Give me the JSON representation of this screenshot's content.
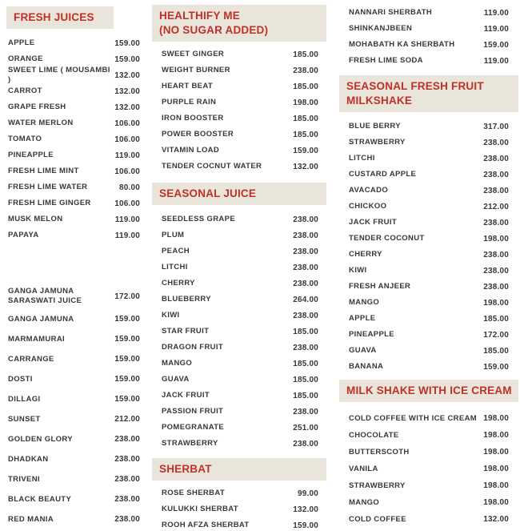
{
  "theme": {
    "header_bg": "#e9e5da",
    "header_text": "#bf3128",
    "item_text": "#383838",
    "page_bg": "#ffffff"
  },
  "columns": [
    {
      "id": "left",
      "sections": [
        {
          "title_lines": [
            "FRESH JUICES"
          ],
          "items": [
            {
              "name": "APPLE",
              "price": "159.00"
            },
            {
              "name": "ORANGE",
              "price": "159.00"
            },
            {
              "name": "SWEET LIME ( MOUSAMBI )",
              "price": "132.00"
            },
            {
              "name": "CARROT",
              "price": "132.00"
            },
            {
              "name": "GRAPE FRESH",
              "price": "132.00"
            },
            {
              "name": "WATER MERLON",
              "price": "106.00"
            },
            {
              "name": "TOMATO",
              "price": "106.00"
            },
            {
              "name": "PINEAPPLE",
              "price": "119.00"
            },
            {
              "name": "FRESH LIME MINT",
              "price": "106.00"
            },
            {
              "name": "FRESH LIME WATER",
              "price": "80.00"
            },
            {
              "name": "FRESH LIME GINGER",
              "price": "106.00"
            },
            {
              "name": "MUSK MELON",
              "price": "119.00"
            },
            {
              "name": "PAPAYA",
              "price": "119.00"
            }
          ]
        },
        {
          "title_lines": [],
          "items": [
            {
              "name": "GANGA JAMUNA\nSARASWATI JUICE",
              "price": "172.00"
            },
            {
              "name": "GANGA JAMUNA",
              "price": "159.00"
            },
            {
              "name": "MARMAMURAI",
              "price": "159.00"
            },
            {
              "name": "CARRANGE",
              "price": "159.00"
            },
            {
              "name": "DOSTI",
              "price": "159.00"
            },
            {
              "name": "DILLAGI",
              "price": "159.00"
            },
            {
              "name": "SUNSET",
              "price": "212.00"
            },
            {
              "name": "GOLDEN GLORY",
              "price": "238.00"
            },
            {
              "name": "DHADKAN",
              "price": "238.00"
            },
            {
              "name": "TRIVENI",
              "price": "238.00"
            },
            {
              "name": "BLACK BEAUTY",
              "price": "238.00"
            },
            {
              "name": "RED MANIA",
              "price": "238.00"
            }
          ]
        }
      ]
    },
    {
      "id": "middle",
      "sections": [
        {
          "title_lines": [
            "HEALTHIFY ME",
            "(NO SUGAR ADDED)"
          ],
          "items": [
            {
              "name": "SWEET GINGER",
              "price": "185.00"
            },
            {
              "name": "WEIGHT BURNER",
              "price": "238.00"
            },
            {
              "name": "HEART BEAT",
              "price": "185.00"
            },
            {
              "name": "PURPLE RAIN",
              "price": "198.00"
            },
            {
              "name": "IRON BOOSTER",
              "price": "185.00"
            },
            {
              "name": "POWER BOOSTER",
              "price": "185.00"
            },
            {
              "name": "VITAMIN LOAD",
              "price": "159.00"
            },
            {
              "name": "TENDER COCNUT WATER",
              "price": "132.00"
            }
          ]
        },
        {
          "title_lines": [
            "SEASONAL JUICE"
          ],
          "items": [
            {
              "name": "SEEDLESS GRAPE",
              "price": "238.00"
            },
            {
              "name": "PLUM",
              "price": "238.00"
            },
            {
              "name": "PEACH",
              "price": "238.00"
            },
            {
              "name": "LITCHI",
              "price": "238.00"
            },
            {
              "name": "CHERRY",
              "price": "238.00"
            },
            {
              "name": "BLUEBERRY",
              "price": "264.00"
            },
            {
              "name": "KIWI",
              "price": "238.00"
            },
            {
              "name": "STAR FRUIT",
              "price": "185.00"
            },
            {
              "name": "DRAGON FRUIT",
              "price": "238.00"
            },
            {
              "name": "MANGO",
              "price": "185.00"
            },
            {
              "name": "GUAVA",
              "price": "185.00"
            },
            {
              "name": "JACK FRUIT",
              "price": "185.00"
            },
            {
              "name": "PASSION FRUIT",
              "price": "238.00"
            },
            {
              "name": "POMEGRANATE",
              "price": "251.00"
            },
            {
              "name": "STRAWBERRY",
              "price": "238.00"
            }
          ]
        },
        {
          "title_lines": [
            "SHERBAT"
          ],
          "items": [
            {
              "name": "ROSE SHERBAT",
              "price": "99.00"
            },
            {
              "name": "KULUKKI SHERBAT",
              "price": "132.00"
            },
            {
              "name": "ROOH AFZA SHERBAT",
              "price": "159.00"
            }
          ]
        }
      ]
    },
    {
      "id": "right",
      "sections": [
        {
          "title_lines": [],
          "items": [
            {
              "name": "NANNARI SHERBATH",
              "price": "119.00"
            },
            {
              "name": "SHINKANJBEEN",
              "price": "119.00"
            },
            {
              "name": "MOHABATH KA SHERBATH",
              "price": "159.00"
            },
            {
              "name": "FRESH LIME SODA",
              "price": "119.00"
            }
          ]
        },
        {
          "title_lines": [
            "SEASONAL FRESH FRUIT",
            "MILKSHAKE"
          ],
          "items": [
            {
              "name": "BLUE BERRY",
              "price": "317.00"
            },
            {
              "name": "STRAWBERRY",
              "price": "238.00"
            },
            {
              "name": "LITCHI",
              "price": "238.00"
            },
            {
              "name": "CUSTARD APPLE",
              "price": "238.00"
            },
            {
              "name": "AVACADO",
              "price": "238.00"
            },
            {
              "name": "CHICKOO",
              "price": "212.00"
            },
            {
              "name": "JACK FRUIT",
              "price": "238.00"
            },
            {
              "name": "TENDER COCONUT",
              "price": "198.00"
            },
            {
              "name": "CHERRY",
              "price": "238.00"
            },
            {
              "name": "KIWI",
              "price": "238.00"
            },
            {
              "name": "FRESH ANJEER",
              "price": "238.00"
            },
            {
              "name": "MANGO",
              "price": "198.00"
            },
            {
              "name": "APPLE",
              "price": "185.00"
            },
            {
              "name": "PINEAPPLE",
              "price": "172.00"
            },
            {
              "name": "GUAVA",
              "price": "185.00"
            },
            {
              "name": "BANANA",
              "price": "159.00"
            }
          ]
        },
        {
          "title_lines": [
            "MILK SHAKE WITH ICE CREAM"
          ],
          "items": [
            {
              "name": "COLD COFFEE WITH ICE CREAM",
              "price": "198.00"
            },
            {
              "name": "CHOCOLATE",
              "price": "198.00"
            },
            {
              "name": "BUTTERSCOTH",
              "price": "198.00"
            },
            {
              "name": "VANILA",
              "price": "198.00"
            },
            {
              "name": "STRAWBERRY",
              "price": "198.00"
            },
            {
              "name": "MANGO",
              "price": "198.00"
            },
            {
              "name": "COLD COFFEE",
              "price": "132.00"
            }
          ]
        }
      ]
    }
  ]
}
